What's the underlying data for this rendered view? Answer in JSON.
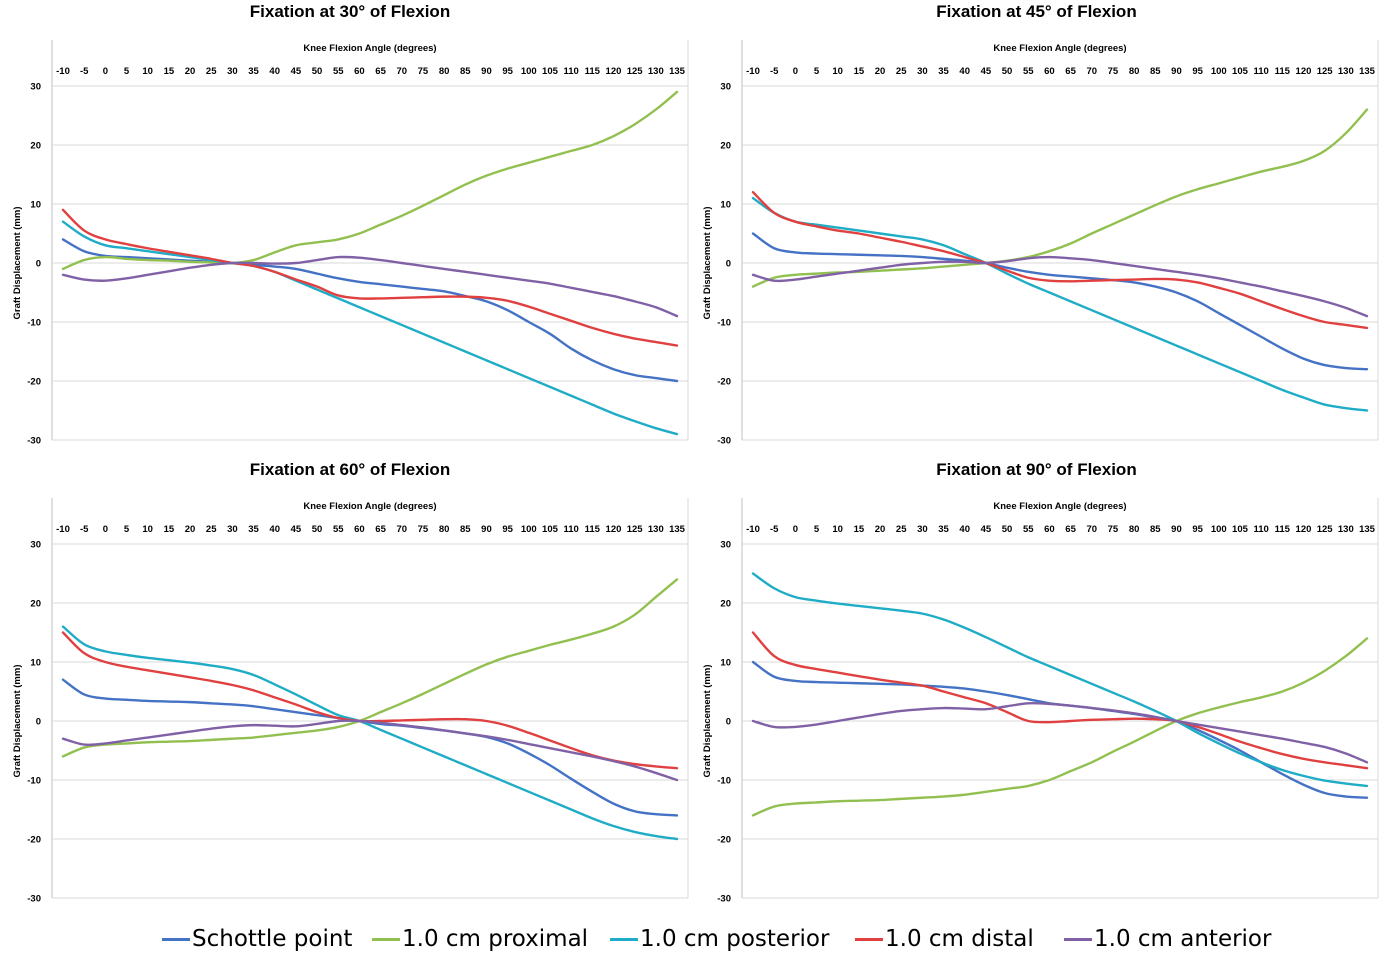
{
  "chart_data": [
    {
      "type": "line",
      "title": "Fixation at 30° of Flexion",
      "xlabel": "Knee Flexion Angle (degrees)",
      "ylabel": "Graft Displacement (mm)",
      "x": [
        -10,
        -5,
        0,
        5,
        10,
        15,
        20,
        25,
        30,
        35,
        40,
        45,
        50,
        55,
        60,
        65,
        70,
        75,
        80,
        85,
        90,
        95,
        100,
        105,
        110,
        115,
        120,
        125,
        130,
        135
      ],
      "ylim": [
        -30,
        30
      ],
      "yticks": [
        30,
        20,
        10,
        0,
        -10,
        -20,
        -30
      ],
      "grid": true,
      "series": [
        {
          "name": "Schottle point",
          "color": "#4472C4",
          "values": [
            4,
            2,
            1.2,
            1,
            0.8,
            0.6,
            0.4,
            0.2,
            0,
            -0.3,
            -0.6,
            -1,
            -1.8,
            -2.6,
            -3.2,
            -3.6,
            -4,
            -4.4,
            -4.8,
            -5.6,
            -6.5,
            -8,
            -10,
            -12,
            -14.5,
            -16.5,
            -18,
            -19,
            -19.5,
            -20
          ]
        },
        {
          "name": "1.0 cm proximal",
          "color": "#92C050",
          "values": [
            -1,
            0.5,
            1,
            0.7,
            0.5,
            0.4,
            0.2,
            0.1,
            0,
            0.5,
            1.8,
            3,
            3.5,
            4,
            5,
            6.5,
            8,
            9.7,
            11.5,
            13.3,
            14.8,
            16,
            17,
            18,
            19,
            20,
            21.5,
            23.5,
            26,
            29
          ]
        },
        {
          "name": "1.0 cm posterior",
          "color": "#1FACC6",
          "values": [
            7,
            4.5,
            3,
            2.5,
            2,
            1.5,
            1,
            0.5,
            0,
            -0.5,
            -1.5,
            -3,
            -4.5,
            -6,
            -7.5,
            -9,
            -10.5,
            -12,
            -13.5,
            -15,
            -16.5,
            -18,
            -19.5,
            -21,
            -22.5,
            -24,
            -25.5,
            -26.8,
            -28,
            -29
          ]
        },
        {
          "name": "1.0 cm distal",
          "color": "#E0403F",
          "values": [
            9,
            5.5,
            4,
            3.2,
            2.5,
            1.9,
            1.3,
            0.7,
            0,
            -0.5,
            -1.5,
            -2.8,
            -4,
            -5.5,
            -6,
            -6,
            -5.9,
            -5.8,
            -5.7,
            -5.7,
            -5.9,
            -6.4,
            -7.4,
            -8.6,
            -9.8,
            -11,
            -12,
            -12.8,
            -13.4,
            -14
          ]
        },
        {
          "name": "1.0 cm anterior",
          "color": "#8061A6",
          "values": [
            -2,
            -2.8,
            -3,
            -2.6,
            -2,
            -1.4,
            -0.8,
            -0.3,
            0,
            0,
            -0.1,
            0,
            0.5,
            1,
            0.9,
            0.5,
            0,
            -0.5,
            -1,
            -1.5,
            -2,
            -2.5,
            -3,
            -3.5,
            -4.2,
            -4.9,
            -5.6,
            -6.5,
            -7.5,
            -9
          ]
        }
      ]
    },
    {
      "type": "line",
      "title": "Fixation at 45° of Flexion",
      "xlabel": "Knee Flexion Angle (degrees)",
      "ylabel": "Graft Displacement (mm)",
      "x": [
        -10,
        -5,
        0,
        5,
        10,
        15,
        20,
        25,
        30,
        35,
        40,
        45,
        50,
        55,
        60,
        65,
        70,
        75,
        80,
        85,
        90,
        95,
        100,
        105,
        110,
        115,
        120,
        125,
        130,
        135
      ],
      "ylim": [
        -30,
        30
      ],
      "yticks": [
        30,
        20,
        10,
        0,
        -10,
        -20,
        -30
      ],
      "grid": true,
      "series": [
        {
          "name": "Schottle point",
          "color": "#4472C4",
          "values": [
            5,
            2.5,
            1.8,
            1.6,
            1.5,
            1.4,
            1.3,
            1.2,
            1,
            0.7,
            0.4,
            0,
            -0.8,
            -1.5,
            -2,
            -2.3,
            -2.6,
            -2.9,
            -3.3,
            -4,
            -5,
            -6.5,
            -8.5,
            -10.5,
            -12.5,
            -14.5,
            -16.2,
            -17.3,
            -17.8,
            -18
          ]
        },
        {
          "name": "1.0 cm proximal",
          "color": "#92C050",
          "values": [
            -4,
            -2.5,
            -2,
            -1.8,
            -1.6,
            -1.5,
            -1.3,
            -1.1,
            -0.9,
            -0.6,
            -0.3,
            0,
            0.4,
            1,
            2,
            3.3,
            5,
            6.6,
            8.2,
            9.8,
            11.3,
            12.5,
            13.5,
            14.5,
            15.5,
            16.3,
            17.3,
            19,
            22,
            26
          ]
        },
        {
          "name": "1.0 cm posterior",
          "color": "#1FACC6",
          "values": [
            11,
            8.5,
            7,
            6.5,
            6,
            5.5,
            5,
            4.5,
            4,
            3,
            1.5,
            0,
            -1.8,
            -3.5,
            -5,
            -6.5,
            -8,
            -9.5,
            -11,
            -12.5,
            -14,
            -15.5,
            -17,
            -18.5,
            -20,
            -21.5,
            -22.8,
            -24,
            -24.6,
            -25
          ]
        },
        {
          "name": "1.0 cm distal",
          "color": "#E0403F",
          "values": [
            12,
            8.5,
            7,
            6.2,
            5.5,
            5,
            4.3,
            3.6,
            2.8,
            2,
            1,
            0,
            -1.3,
            -2.5,
            -3,
            -3.1,
            -3,
            -2.9,
            -2.8,
            -2.7,
            -2.8,
            -3.3,
            -4.2,
            -5.2,
            -6.5,
            -7.8,
            -9,
            -10,
            -10.5,
            -11
          ]
        },
        {
          "name": "1.0 cm anterior",
          "color": "#8061A6",
          "values": [
            -2,
            -3,
            -2.8,
            -2.3,
            -1.8,
            -1.3,
            -0.8,
            -0.3,
            0,
            0.2,
            0.2,
            0,
            0.3,
            0.8,
            1,
            0.8,
            0.5,
            0,
            -0.5,
            -1,
            -1.5,
            -2,
            -2.6,
            -3.3,
            -4,
            -4.8,
            -5.6,
            -6.5,
            -7.6,
            -9
          ]
        }
      ]
    },
    {
      "type": "line",
      "title": "Fixation at 60° of Flexion",
      "xlabel": "Knee Flexion Angle (degrees)",
      "ylabel": "Graft Displacement (mm)",
      "x": [
        -10,
        -5,
        0,
        5,
        10,
        15,
        20,
        25,
        30,
        35,
        40,
        45,
        50,
        55,
        60,
        65,
        70,
        75,
        80,
        85,
        90,
        95,
        100,
        105,
        110,
        115,
        120,
        125,
        130,
        135
      ],
      "ylim": [
        -30,
        30
      ],
      "yticks": [
        30,
        20,
        10,
        0,
        -10,
        -20,
        -30
      ],
      "grid": true,
      "series": [
        {
          "name": "Schottle point",
          "color": "#4472C4",
          "values": [
            7,
            4.5,
            3.8,
            3.6,
            3.4,
            3.3,
            3.2,
            3,
            2.8,
            2.5,
            2,
            1.5,
            1,
            0.5,
            0,
            -0.5,
            -0.8,
            -1.2,
            -1.6,
            -2.1,
            -2.7,
            -3.8,
            -5.5,
            -7.5,
            -9.8,
            -12,
            -14,
            -15.3,
            -15.8,
            -16
          ]
        },
        {
          "name": "1.0 cm proximal",
          "color": "#92C050",
          "values": [
            -6,
            -4.5,
            -4,
            -3.8,
            -3.6,
            -3.5,
            -3.4,
            -3.2,
            -3,
            -2.8,
            -2.4,
            -2,
            -1.6,
            -1,
            0,
            1.5,
            3,
            4.6,
            6.3,
            8,
            9.6,
            10.9,
            11.9,
            12.9,
            13.8,
            14.8,
            16,
            18,
            21,
            24
          ]
        },
        {
          "name": "1.0 cm posterior",
          "color": "#1FACC6",
          "values": [
            16,
            13,
            11.8,
            11.2,
            10.7,
            10.3,
            9.9,
            9.4,
            8.8,
            7.8,
            6.2,
            4.5,
            2.7,
            1,
            0,
            -1.5,
            -3,
            -4.5,
            -6,
            -7.5,
            -9,
            -10.5,
            -12,
            -13.5,
            -15,
            -16.5,
            -17.8,
            -18.8,
            -19.5,
            -20
          ]
        },
        {
          "name": "1.0 cm distal",
          "color": "#E0403F",
          "values": [
            15,
            11.5,
            10,
            9.2,
            8.6,
            8,
            7.4,
            6.8,
            6.1,
            5.2,
            4,
            2.8,
            1.5,
            0.5,
            0,
            0,
            0.1,
            0.2,
            0.3,
            0.3,
            0,
            -0.8,
            -2,
            -3.3,
            -4.6,
            -5.8,
            -6.7,
            -7.3,
            -7.7,
            -8
          ]
        },
        {
          "name": "1.0 cm anterior",
          "color": "#8061A6",
          "values": [
            -3,
            -4,
            -3.8,
            -3.3,
            -2.8,
            -2.3,
            -1.8,
            -1.3,
            -0.9,
            -0.7,
            -0.8,
            -0.9,
            -0.5,
            0,
            0,
            -0.3,
            -0.7,
            -1.1,
            -1.6,
            -2.1,
            -2.6,
            -3.2,
            -3.9,
            -4.6,
            -5.3,
            -6,
            -6.8,
            -7.7,
            -8.8,
            -10
          ]
        }
      ]
    },
    {
      "type": "line",
      "title": "Fixation at 90° of Flexion",
      "xlabel": "Knee Flexion Angle (degrees)",
      "ylabel": "Graft Displacement (mm)",
      "x": [
        -10,
        -5,
        0,
        5,
        10,
        15,
        20,
        25,
        30,
        35,
        40,
        45,
        50,
        55,
        60,
        65,
        70,
        75,
        80,
        85,
        90,
        95,
        100,
        105,
        110,
        115,
        120,
        125,
        130,
        135
      ],
      "ylim": [
        -30,
        30
      ],
      "yticks": [
        30,
        20,
        10,
        0,
        -10,
        -20,
        -30
      ],
      "grid": true,
      "series": [
        {
          "name": "Schottle point",
          "color": "#4472C4",
          "values": [
            10,
            7.5,
            6.8,
            6.6,
            6.5,
            6.4,
            6.3,
            6.2,
            6,
            5.8,
            5.5,
            5,
            4.4,
            3.7,
            3,
            2.6,
            2.2,
            1.7,
            1.2,
            0.6,
            0,
            -1.5,
            -3.2,
            -5,
            -7,
            -9,
            -10.8,
            -12.2,
            -12.8,
            -13
          ]
        },
        {
          "name": "1.0 cm proximal",
          "color": "#92C050",
          "values": [
            -16,
            -14.5,
            -14,
            -13.8,
            -13.6,
            -13.5,
            -13.4,
            -13.2,
            -13,
            -12.8,
            -12.5,
            -12,
            -11.5,
            -11,
            -10,
            -8.5,
            -7,
            -5.2,
            -3.5,
            -1.7,
            0,
            1.3,
            2.3,
            3.2,
            4,
            5,
            6.5,
            8.5,
            11,
            14
          ]
        },
        {
          "name": "1.0 cm posterior",
          "color": "#1FACC6",
          "values": [
            25,
            22.5,
            21,
            20.4,
            19.9,
            19.5,
            19.1,
            18.7,
            18.2,
            17.2,
            15.8,
            14.2,
            12.5,
            10.8,
            9.3,
            7.8,
            6.3,
            4.8,
            3.3,
            1.7,
            0,
            -2,
            -3.8,
            -5.5,
            -7,
            -8.3,
            -9.3,
            -10.1,
            -10.6,
            -11
          ]
        },
        {
          "name": "1.0 cm distal",
          "color": "#E0403F",
          "values": [
            15,
            11,
            9.5,
            8.8,
            8.2,
            7.6,
            7,
            6.5,
            6,
            5,
            4,
            3,
            1.5,
            0,
            -0.2,
            0,
            0.2,
            0.3,
            0.4,
            0.3,
            0,
            -1,
            -2.2,
            -3.5,
            -4.6,
            -5.6,
            -6.4,
            -7,
            -7.5,
            -8
          ]
        },
        {
          "name": "1.0 cm anterior",
          "color": "#8061A6",
          "values": [
            0,
            -1,
            -1,
            -0.6,
            0,
            0.6,
            1.2,
            1.7,
            2,
            2.2,
            2.1,
            2,
            2.5,
            3,
            2.9,
            2.6,
            2.2,
            1.8,
            1.3,
            0.7,
            0,
            -0.6,
            -1.2,
            -1.8,
            -2.4,
            -3,
            -3.7,
            -4.4,
            -5.5,
            -7
          ]
        }
      ]
    }
  ],
  "legend": [
    {
      "name": "Schottle point",
      "color": "#4472C4"
    },
    {
      "name": "1.0 cm proximal",
      "color": "#92C050"
    },
    {
      "name": "1.0 cm posterior",
      "color": "#1FACC6"
    },
    {
      "name": "1.0 cm distal",
      "color": "#E0403F"
    },
    {
      "name": "1.0 cm anterior",
      "color": "#8061A6"
    }
  ]
}
